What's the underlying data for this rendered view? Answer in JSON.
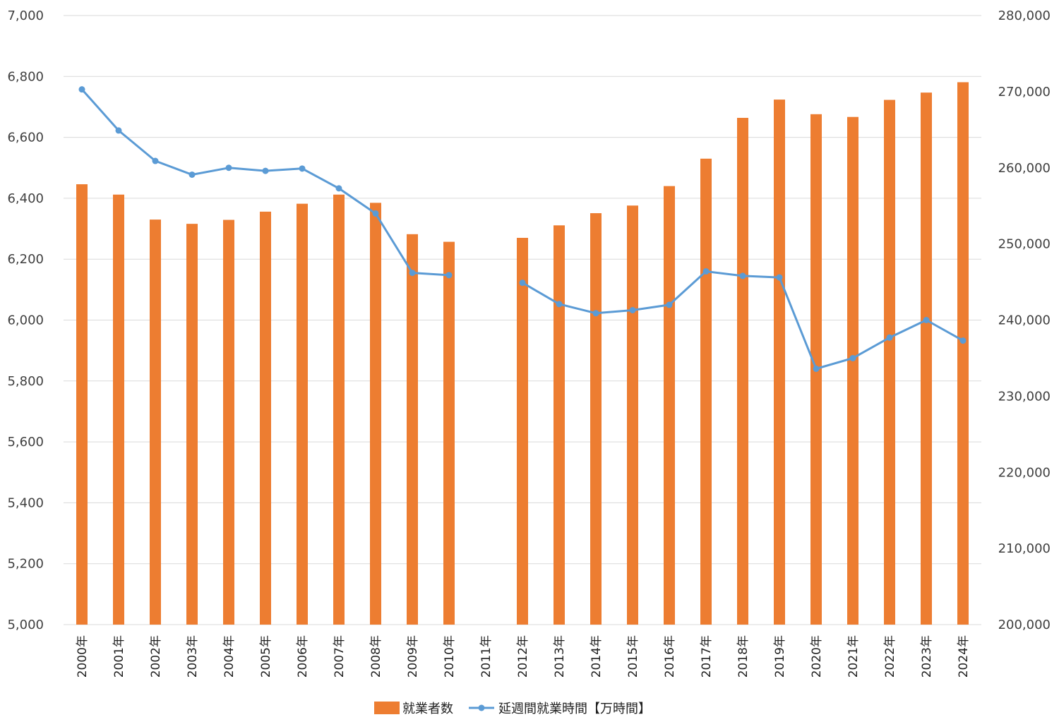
{
  "chart_data": {
    "type": "bar+line",
    "categories": [
      "2000年",
      "2001年",
      "2002年",
      "2003年",
      "2004年",
      "2005年",
      "2006年",
      "2007年",
      "2008年",
      "2009年",
      "2010年",
      "2011年",
      "2012年",
      "2013年",
      "2014年",
      "2015年",
      "2016年",
      "2017年",
      "2018年",
      "2019年",
      "2020年",
      "2021年",
      "2022年",
      "2023年",
      "2024年"
    ],
    "series": [
      {
        "name": "就業者数",
        "type": "bar",
        "axis": "left",
        "color": "#ed7d31",
        "values": [
          6446,
          6412,
          6330,
          6316,
          6329,
          6356,
          6382,
          6412,
          6385,
          6282,
          6257,
          null,
          6270,
          6311,
          6351,
          6376,
          6440,
          6530,
          6664,
          6724,
          6676,
          6667,
          6723,
          6747,
          6781
        ]
      },
      {
        "name": "延週間就業時間【万時間】",
        "type": "line",
        "axis": "right",
        "color": "#5b9bd5",
        "values": [
          270300,
          264900,
          260900,
          259100,
          260000,
          259600,
          259900,
          257300,
          254000,
          246200,
          245900,
          null,
          244900,
          242100,
          240900,
          241300,
          242000,
          246400,
          245800,
          245600,
          233600,
          235000,
          237700,
          240000,
          237300
        ]
      }
    ],
    "y_left": {
      "min": 5000,
      "max": 7000,
      "step": 200
    },
    "y_right": {
      "min": 200000,
      "max": 280000,
      "step": 10000
    },
    "grid": true,
    "legend_position": "bottom-center"
  }
}
